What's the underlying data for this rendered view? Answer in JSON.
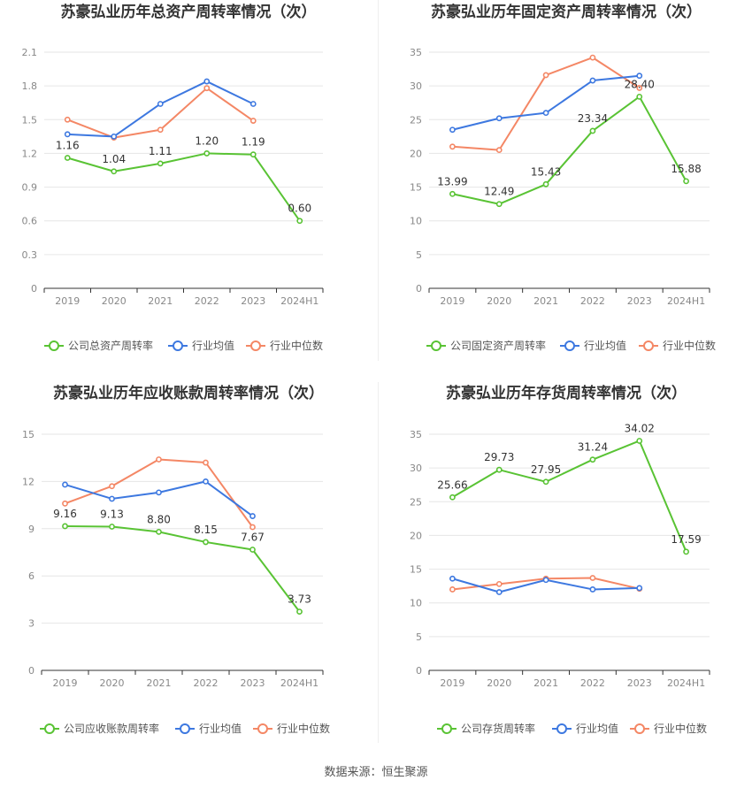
{
  "colors": {
    "company": "#59c334",
    "avg": "#3d78e0",
    "median": "#f48765",
    "grid": "#e6e6e6",
    "axis": "#333333",
    "tick": "#888888",
    "title": "#333333"
  },
  "source": "数据来源：恒生聚源",
  "chart_data": [
    {
      "type": "line",
      "title": "苏豪弘业历年总资产周转率情况（次）",
      "categories": [
        "2019",
        "2020",
        "2021",
        "2022",
        "2023",
        "2024H1"
      ],
      "yticks": [
        "0",
        "0.3",
        "0.6",
        "0.9",
        "1.2",
        "1.5",
        "1.8",
        "2.1"
      ],
      "ylim": [
        0,
        2.1
      ],
      "series": [
        {
          "name": "公司总资产周转率",
          "key": "company",
          "values": [
            1.16,
            1.04,
            1.11,
            1.2,
            1.19,
            0.6
          ],
          "labels": [
            "1.16",
            "1.04",
            "1.11",
            "1.20",
            "1.19",
            "0.60"
          ]
        },
        {
          "name": "行业均值",
          "key": "avg",
          "values": [
            1.37,
            1.35,
            1.64,
            1.84,
            1.64,
            null
          ]
        },
        {
          "name": "行业中位数",
          "key": "median",
          "values": [
            1.5,
            1.34,
            1.41,
            1.78,
            1.49,
            null
          ]
        }
      ]
    },
    {
      "type": "line",
      "title": "苏豪弘业历年固定资产周转率情况（次）",
      "categories": [
        "2019",
        "2020",
        "2021",
        "2022",
        "2023",
        "2024H1"
      ],
      "yticks": [
        "0",
        "5",
        "10",
        "15",
        "20",
        "25",
        "30",
        "35"
      ],
      "ylim": [
        0,
        35
      ],
      "series": [
        {
          "name": "公司固定资产周转率",
          "key": "company",
          "values": [
            13.99,
            12.49,
            15.43,
            23.34,
            28.4,
            15.88
          ],
          "labels": [
            "13.99",
            "12.49",
            "15.43",
            "23.34",
            "28.40",
            "15.88"
          ]
        },
        {
          "name": "行业均值",
          "key": "avg",
          "values": [
            23.5,
            25.2,
            26.0,
            30.8,
            31.5,
            null
          ]
        },
        {
          "name": "行业中位数",
          "key": "median",
          "values": [
            21.0,
            20.5,
            31.6,
            34.2,
            29.7,
            null
          ]
        }
      ]
    },
    {
      "type": "line",
      "title": "苏豪弘业历年应收账款周转率情况（次）",
      "categories": [
        "2019",
        "2020",
        "2021",
        "2022",
        "2023",
        "2024H1"
      ],
      "yticks": [
        "0",
        "3",
        "6",
        "9",
        "12",
        "15"
      ],
      "ylim": [
        0,
        15
      ],
      "series": [
        {
          "name": "公司应收账款周转率",
          "key": "company",
          "values": [
            9.16,
            9.13,
            8.8,
            8.15,
            7.67,
            3.73
          ],
          "labels": [
            "9.16",
            "9.13",
            "8.80",
            "8.15",
            "7.67",
            "3.73"
          ]
        },
        {
          "name": "行业均值",
          "key": "avg",
          "values": [
            11.8,
            10.9,
            11.3,
            12.0,
            9.8,
            null
          ]
        },
        {
          "name": "行业中位数",
          "key": "median",
          "values": [
            10.6,
            11.7,
            13.4,
            13.2,
            9.1,
            null
          ]
        }
      ]
    },
    {
      "type": "line",
      "title": "苏豪弘业历年存货周转率情况（次）",
      "categories": [
        "2019",
        "2020",
        "2021",
        "2022",
        "2023",
        "2024H1"
      ],
      "yticks": [
        "0",
        "5",
        "10",
        "15",
        "20",
        "25",
        "30",
        "35"
      ],
      "ylim": [
        0,
        35
      ],
      "series": [
        {
          "name": "公司存货周转率",
          "key": "company",
          "values": [
            25.66,
            29.73,
            27.95,
            31.24,
            34.02,
            17.59
          ],
          "labels": [
            "25.66",
            "29.73",
            "27.95",
            "31.24",
            "34.02",
            "17.59"
          ]
        },
        {
          "name": "行业均值",
          "key": "avg",
          "values": [
            13.6,
            11.6,
            13.4,
            12.0,
            12.2,
            null
          ]
        },
        {
          "name": "行业中位数",
          "key": "median",
          "values": [
            12.0,
            12.8,
            13.6,
            13.7,
            12.1,
            null
          ]
        }
      ]
    }
  ]
}
